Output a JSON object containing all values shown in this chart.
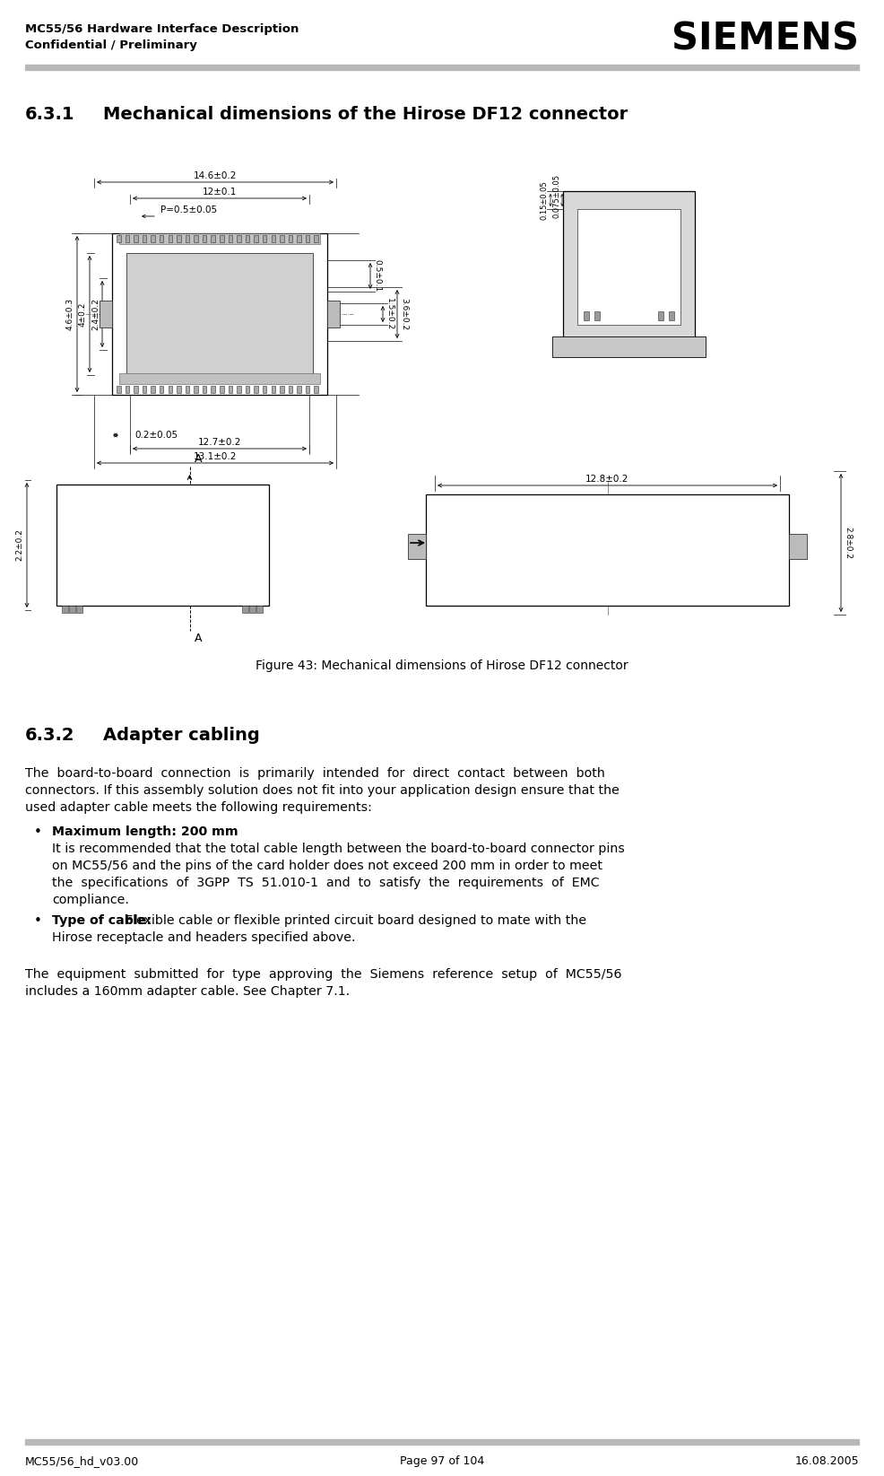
{
  "header_left_line1": "MC55/56 Hardware Interface Description",
  "header_left_line2": "Confidential / Preliminary",
  "header_right": "SIEMENS",
  "footer_left": "MC55/56_hd_v03.00",
  "footer_center": "Page 97 of 104",
  "footer_right": "16.08.2005",
  "section_631_num": "6.3.1",
  "section_631_title": "Mechanical dimensions of the Hirose DF12 connector",
  "figure_caption": "Figure 43: Mechanical dimensions of Hirose DF12 connector",
  "section_632_num": "6.3.2",
  "section_632_title": "Adapter cabling",
  "para1_line1": "The  board-to-board  connection  is  primarily  intended  for  direct  contact  between  both",
  "para1_line2": "connectors. If this assembly solution does not fit into your application design ensure that the",
  "para1_line3": "used adapter cable meets the following requirements:",
  "bullet1_bold": "Maximum length: 200 mm",
  "bullet1_l1": "It is recommended that the total cable length between the board-to-board connector pins",
  "bullet1_l2": "on MC55/56 and the pins of the card holder does not exceed 200 mm in order to meet",
  "bullet1_l3": "the  specifications  of  3GPP  TS  51.010-1  and  to  satisfy  the  requirements  of  EMC",
  "bullet1_l4": "compliance.",
  "bullet2_bold": "Type of cable: ",
  "bullet2_rest": "Flexible cable or flexible printed circuit board designed to mate with the",
  "bullet2_l2": "Hirose receptacle and headers specified above.",
  "para2_line1": "The  equipment  submitted  for  type  approving  the  Siemens  reference  setup  of  MC55/56",
  "para2_line2": "includes a 160mm adapter cable. See Chapter 7.1.",
  "bg_color": "#ffffff",
  "text_color": "#000000",
  "gray_line_color": "#aaaaaa",
  "drawing_line_color": "#333333",
  "drawing_fill_light": "#e0e0e0",
  "drawing_fill_dark": "#888888"
}
